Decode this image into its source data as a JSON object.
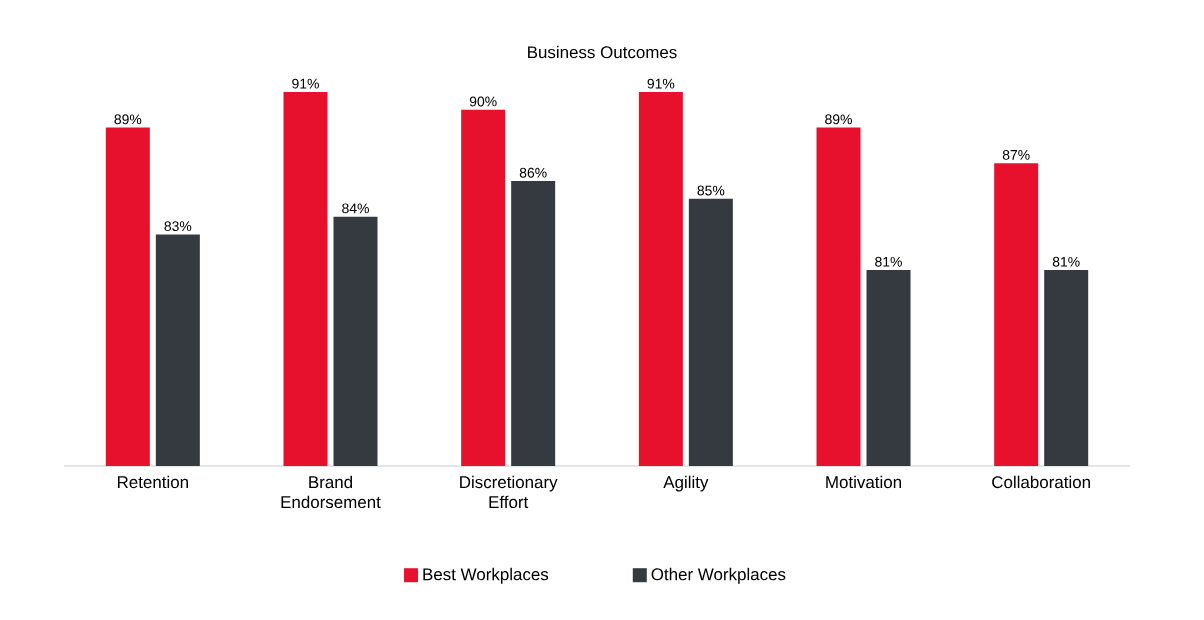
{
  "chart_data": {
    "type": "bar",
    "title": "Business Outcomes",
    "categories": [
      "Retention",
      "Brand Endorsement",
      "Discretionary Effort",
      "Agility",
      "Motivation",
      "Collaboration"
    ],
    "ylim": [
      70,
      91
    ],
    "legend": "bottom",
    "tick_labels": "x",
    "series": [
      {
        "name": "Best Workplaces",
        "color": "#e8112d",
        "values": [
          89,
          91,
          90,
          91,
          89,
          87
        ],
        "value_labels": [
          "89%",
          "91%",
          "90%",
          "91%",
          "89%",
          "87%"
        ]
      },
      {
        "name": "Other Workplaces",
        "color": "#343a40",
        "values": [
          83,
          84,
          86,
          85,
          81,
          81
        ],
        "value_labels": [
          "83%",
          "84%",
          "86%",
          "85%",
          "81%",
          "81%"
        ]
      }
    ]
  }
}
